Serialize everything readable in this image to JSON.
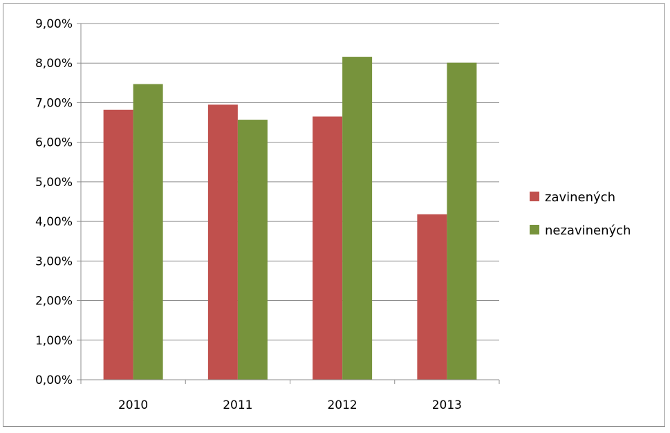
{
  "chart_data": {
    "type": "bar",
    "categories": [
      "2010",
      "2011",
      "2012",
      "2013"
    ],
    "series": [
      {
        "name": "zavinených",
        "values": [
          6.82,
          6.95,
          6.65,
          4.18
        ],
        "color": "#c0504d"
      },
      {
        "name": "nezavinených",
        "values": [
          7.47,
          6.57,
          8.16,
          8.01
        ],
        "color": "#77933c"
      }
    ],
    "y_ticks": [
      "0,00%",
      "1,00%",
      "2,00%",
      "3,00%",
      "4,00%",
      "5,00%",
      "6,00%",
      "7,00%",
      "8,00%",
      "9,00%"
    ],
    "ylim": [
      0,
      9
    ],
    "grid": true,
    "legend_position": "right",
    "title": "",
    "xlabel": "",
    "ylabel": ""
  }
}
